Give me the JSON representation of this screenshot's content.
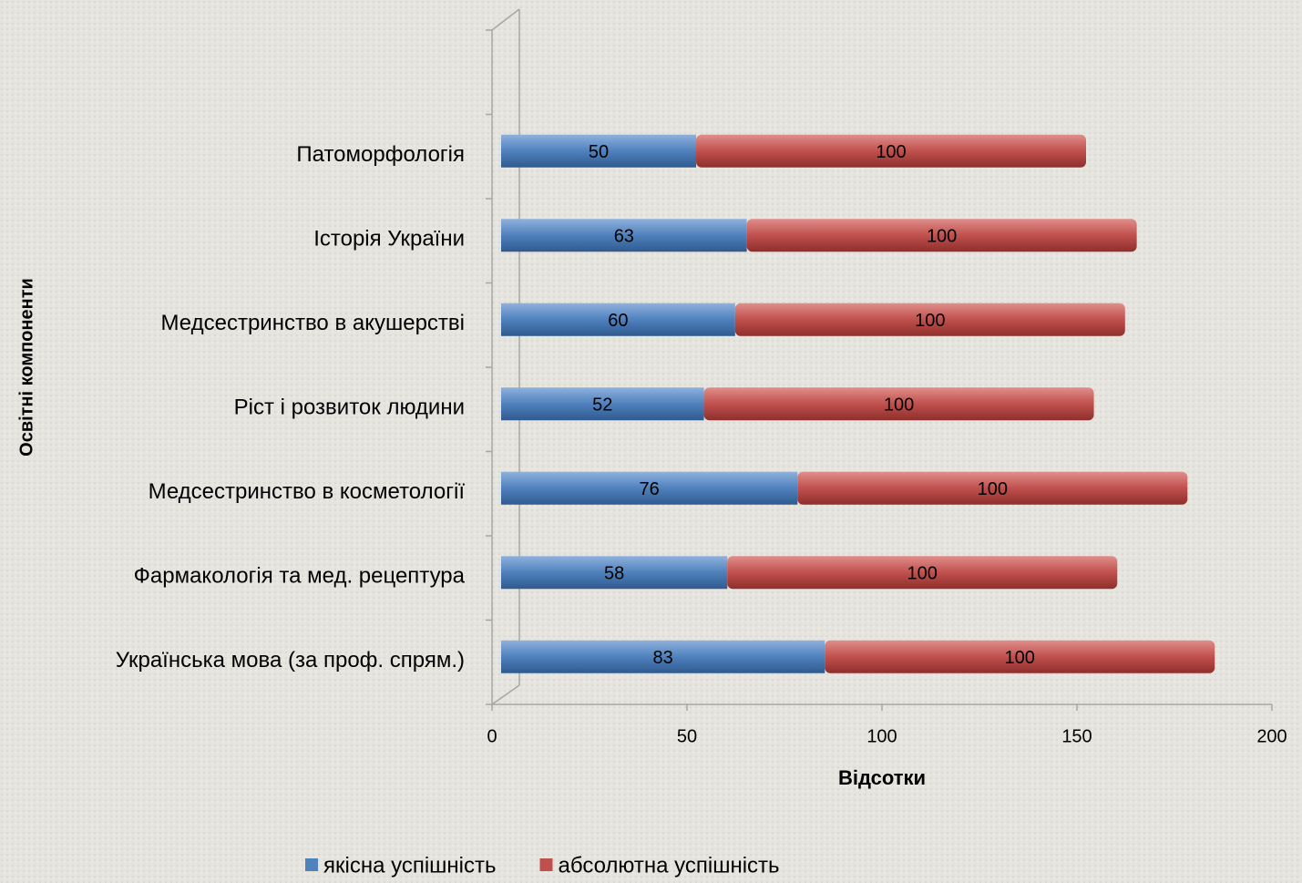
{
  "chart_data": {
    "type": "bar",
    "orientation": "horizontal",
    "stacked": true,
    "x_axis_label": "Відсотки",
    "y_axis_label": "Освітні компоненти",
    "categories": [
      "Українська мова (за проф. спрям.)",
      "Фармакологія та мед. рецептура",
      "Медсестринство в косметології",
      "Ріст і розвиток людини",
      "Медсестринство в акушерстві",
      "Історія України",
      "Патоморфологія",
      null
    ],
    "series": [
      {
        "name": "якісна успішність",
        "color": "#4f81bd",
        "values": [
          83,
          58,
          76,
          52,
          60,
          63,
          50,
          null
        ]
      },
      {
        "name": "абсолютна успішність",
        "color": "#c0504d",
        "values": [
          100,
          100,
          100,
          100,
          100,
          100,
          100,
          null
        ]
      }
    ],
    "xlim": [
      0,
      200
    ],
    "xticks": [
      0,
      50,
      100,
      150,
      200
    ],
    "legend": "bottom"
  }
}
